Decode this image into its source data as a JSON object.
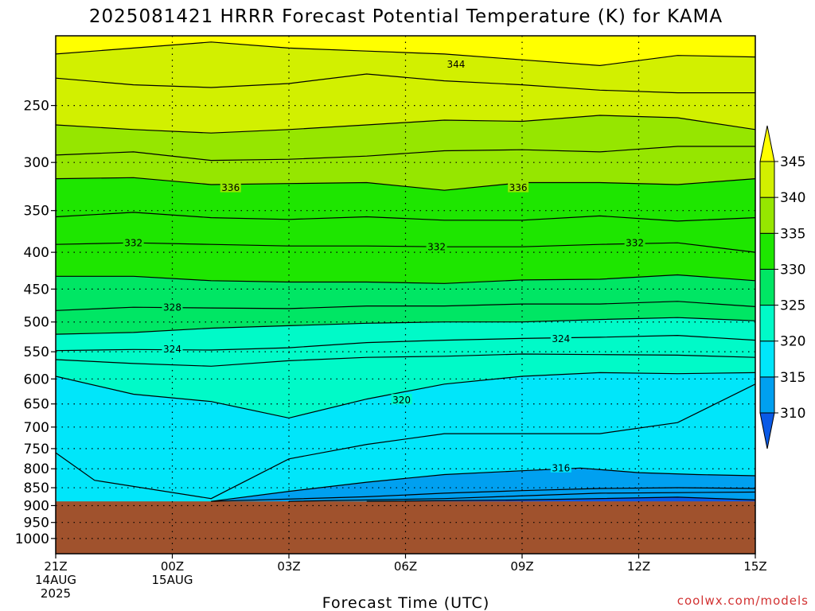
{
  "chart_data": {
    "type": "heatmap",
    "title": "2025081421 HRRR Forecast Potential Temperature (K) for KAMA",
    "xlabel": "Forecast Time (UTC)",
    "ylabel": "",
    "credit": "coolwx.com/models",
    "x_ticks": [
      {
        "hour": 0,
        "lines": [
          "21Z",
          "14AUG",
          "2025"
        ]
      },
      {
        "hour": 3,
        "lines": [
          "00Z",
          "15AUG"
        ]
      },
      {
        "hour": 6,
        "lines": [
          "03Z"
        ]
      },
      {
        "hour": 9,
        "lines": [
          "06Z"
        ]
      },
      {
        "hour": 12,
        "lines": [
          "09Z"
        ]
      },
      {
        "hour": 15,
        "lines": [
          "12Z"
        ]
      },
      {
        "hour": 18,
        "lines": [
          "15Z"
        ]
      }
    ],
    "x_range_hours": [
      0,
      18
    ],
    "y_axis": {
      "type": "pressure",
      "units": "hPa",
      "range": [
        200,
        1050
      ],
      "ticks": [
        250,
        300,
        350,
        400,
        450,
        500,
        550,
        600,
        650,
        700,
        750,
        800,
        850,
        900,
        950,
        1000
      ]
    },
    "grid": true,
    "colorbar": {
      "placement": "right",
      "levels": [
        310,
        315,
        320,
        325,
        330,
        335,
        340,
        345
      ],
      "colors": [
        "#0a5ae6",
        "#00a0f0",
        "#00e6fa",
        "#00fac8",
        "#00e664",
        "#1ee600",
        "#96e600",
        "#d2f000",
        "#ffff00"
      ],
      "extend": "both"
    },
    "ground_color": "#a0522d",
    "surface_pressure_hPa": 888,
    "contour_interval_K": 2,
    "contour_labels": [
      {
        "value": 344,
        "hour": 10.3,
        "p": 219
      },
      {
        "value": 336,
        "hour": 4.5,
        "p": 325
      },
      {
        "value": 336,
        "hour": 11.9,
        "p": 325
      },
      {
        "value": 332,
        "hour": 2.0,
        "p": 388
      },
      {
        "value": 332,
        "hour": 9.8,
        "p": 393
      },
      {
        "value": 332,
        "hour": 14.9,
        "p": 388
      },
      {
        "value": 328,
        "hour": 3.0,
        "p": 477
      },
      {
        "value": 324,
        "hour": 3.0,
        "p": 545
      },
      {
        "value": 324,
        "hour": 13.0,
        "p": 527
      },
      {
        "value": 320,
        "hour": 8.9,
        "p": 641
      },
      {
        "value": 316,
        "hour": 13.0,
        "p": 797
      }
    ],
    "contours": [
      {
        "value": 344,
        "points": [
          [
            0,
            212
          ],
          [
            2,
            208
          ],
          [
            4,
            204
          ],
          [
            6,
            208
          ],
          [
            8,
            210
          ],
          [
            10,
            212
          ],
          [
            12,
            216
          ],
          [
            14,
            220
          ],
          [
            16,
            213
          ],
          [
            18,
            214
          ]
        ]
      },
      {
        "value": 342,
        "points": [
          [
            0,
            229
          ],
          [
            2,
            234
          ],
          [
            4,
            236
          ],
          [
            6,
            233
          ],
          [
            8,
            226
          ],
          [
            10,
            231
          ],
          [
            12,
            234
          ],
          [
            14,
            238
          ],
          [
            16,
            240
          ],
          [
            18,
            240
          ]
        ]
      },
      {
        "value": 340,
        "points": [
          [
            0,
            266
          ],
          [
            2,
            270
          ],
          [
            4,
            273
          ],
          [
            6,
            270
          ],
          [
            8,
            266
          ],
          [
            10,
            262
          ],
          [
            12,
            263
          ],
          [
            14,
            258
          ],
          [
            16,
            260
          ],
          [
            18,
            270
          ]
        ]
      },
      {
        "value": 338,
        "points": [
          [
            0,
            293
          ],
          [
            2,
            290
          ],
          [
            4,
            298
          ],
          [
            6,
            297
          ],
          [
            8,
            294
          ],
          [
            10,
            289
          ],
          [
            12,
            288
          ],
          [
            14,
            290
          ],
          [
            16,
            285
          ],
          [
            18,
            285
          ]
        ]
      },
      {
        "value": 336,
        "points": [
          [
            0,
            316
          ],
          [
            2,
            315
          ],
          [
            4,
            322
          ],
          [
            6,
            321
          ],
          [
            8,
            320
          ],
          [
            10,
            328
          ],
          [
            12,
            320
          ],
          [
            14,
            320
          ],
          [
            16,
            322
          ],
          [
            18,
            316
          ]
        ]
      },
      {
        "value": 334,
        "points": [
          [
            0,
            357
          ],
          [
            2,
            352
          ],
          [
            4,
            358
          ],
          [
            6,
            360
          ],
          [
            8,
            357
          ],
          [
            10,
            361
          ],
          [
            12,
            361
          ],
          [
            14,
            356
          ],
          [
            16,
            362
          ],
          [
            18,
            358
          ]
        ]
      },
      {
        "value": 332,
        "points": [
          [
            0,
            390
          ],
          [
            2,
            388
          ],
          [
            4,
            390
          ],
          [
            6,
            392
          ],
          [
            8,
            392
          ],
          [
            10,
            393
          ],
          [
            12,
            393
          ],
          [
            14,
            390
          ],
          [
            16,
            388
          ],
          [
            18,
            400
          ]
        ]
      },
      {
        "value": 330,
        "points": [
          [
            0,
            432
          ],
          [
            2,
            432
          ],
          [
            4,
            438
          ],
          [
            6,
            440
          ],
          [
            8,
            440
          ],
          [
            10,
            442
          ],
          [
            12,
            437
          ],
          [
            14,
            436
          ],
          [
            16,
            430
          ],
          [
            18,
            438
          ]
        ]
      },
      {
        "value": 328,
        "points": [
          [
            0,
            482
          ],
          [
            2,
            477
          ],
          [
            4,
            478
          ],
          [
            6,
            479
          ],
          [
            8,
            475
          ],
          [
            10,
            475
          ],
          [
            12,
            472
          ],
          [
            14,
            472
          ],
          [
            16,
            468
          ],
          [
            18,
            476
          ]
        ]
      },
      {
        "value": 326,
        "points": [
          [
            0,
            520
          ],
          [
            2,
            517
          ],
          [
            4,
            510
          ],
          [
            6,
            506
          ],
          [
            8,
            502
          ],
          [
            10,
            500
          ],
          [
            12,
            500
          ],
          [
            14,
            496
          ],
          [
            16,
            493
          ],
          [
            18,
            498
          ]
        ]
      },
      {
        "value": 324,
        "points": [
          [
            0,
            548
          ],
          [
            2,
            546
          ],
          [
            4,
            547
          ],
          [
            6,
            543
          ],
          [
            8,
            534
          ],
          [
            10,
            530
          ],
          [
            12,
            527
          ],
          [
            14,
            525
          ],
          [
            16,
            522
          ],
          [
            18,
            530
          ]
        ]
      },
      {
        "value": 322,
        "points": [
          [
            0,
            564
          ],
          [
            2,
            571
          ],
          [
            4,
            576
          ],
          [
            6,
            566
          ],
          [
            8,
            560
          ],
          [
            10,
            558
          ],
          [
            12,
            554
          ],
          [
            14,
            555
          ],
          [
            16,
            556
          ],
          [
            18,
            560
          ]
        ]
      },
      {
        "value": 320,
        "points": [
          [
            0,
            595
          ],
          [
            2,
            630
          ],
          [
            4,
            645
          ],
          [
            6,
            680
          ],
          [
            8,
            640
          ],
          [
            10,
            610
          ],
          [
            12,
            595
          ],
          [
            14,
            588
          ],
          [
            16,
            590
          ],
          [
            18,
            588
          ]
        ]
      },
      {
        "value": 318,
        "points": [
          [
            0,
            760
          ],
          [
            1,
            830
          ],
          [
            4,
            880
          ],
          [
            6,
            775
          ],
          [
            8,
            740
          ],
          [
            10,
            715
          ],
          [
            12,
            715
          ],
          [
            14,
            715
          ],
          [
            16,
            690
          ],
          [
            18,
            610
          ]
        ]
      },
      {
        "value": 316,
        "points": [
          [
            4,
            888
          ],
          [
            6,
            860
          ],
          [
            8,
            835
          ],
          [
            10,
            815
          ],
          [
            12,
            805
          ],
          [
            13.5,
            798
          ],
          [
            15,
            810
          ],
          [
            16.5,
            815
          ],
          [
            18,
            818
          ]
        ]
      },
      {
        "value": 314,
        "points": [
          [
            4,
            888
          ],
          [
            8,
            875
          ],
          [
            10,
            865
          ],
          [
            12,
            858
          ],
          [
            14,
            852
          ],
          [
            16,
            850
          ],
          [
            18,
            852
          ]
        ]
      },
      {
        "value": 312,
        "points": [
          [
            6,
            888
          ],
          [
            10,
            880
          ],
          [
            14,
            865
          ],
          [
            18,
            862
          ]
        ]
      },
      {
        "value": 310,
        "points": [
          [
            8,
            888
          ],
          [
            12,
            884
          ],
          [
            16,
            876
          ],
          [
            18,
            884
          ]
        ]
      }
    ]
  }
}
